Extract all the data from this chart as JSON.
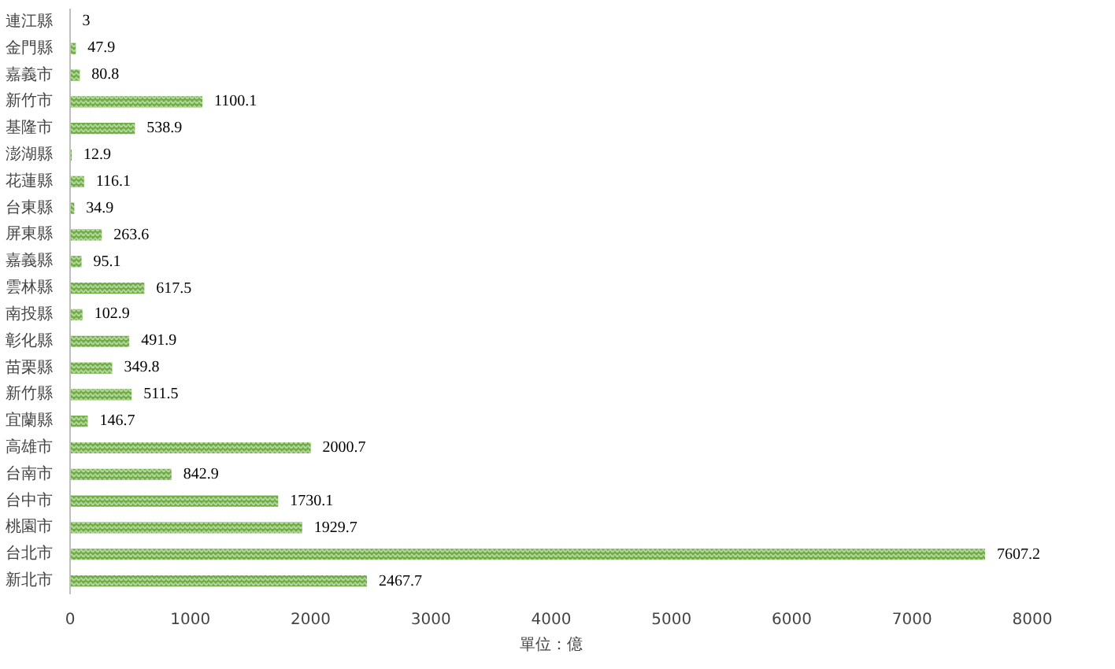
{
  "chart_data": {
    "type": "bar",
    "orientation": "horizontal",
    "xlabel": "單位：億",
    "categories": [
      "連江縣",
      "金門縣",
      "嘉義市",
      "新竹市",
      "基隆市",
      "澎湖縣",
      "花蓮縣",
      "台東縣",
      "屏東縣",
      "嘉義縣",
      "雲林縣",
      "南投縣",
      "彰化縣",
      "苗栗縣",
      "新竹縣",
      "宜蘭縣",
      "高雄市",
      "台南市",
      "台中市",
      "桃園市",
      "台北市",
      "新北市"
    ],
    "values": [
      3,
      47.9,
      80.8,
      1100.1,
      538.9,
      12.9,
      116.1,
      34.9,
      263.6,
      95.1,
      617.5,
      102.9,
      491.9,
      349.8,
      511.5,
      146.7,
      2000.7,
      842.9,
      1730.1,
      1929.7,
      7607.2,
      2467.7
    ],
    "color": "#70ad47",
    "data_labels": true,
    "xlim": [
      0,
      8000
    ],
    "xticks": [
      0,
      1000,
      2000,
      3000,
      4000,
      5000,
      6000,
      7000,
      8000
    ],
    "grid": false
  }
}
